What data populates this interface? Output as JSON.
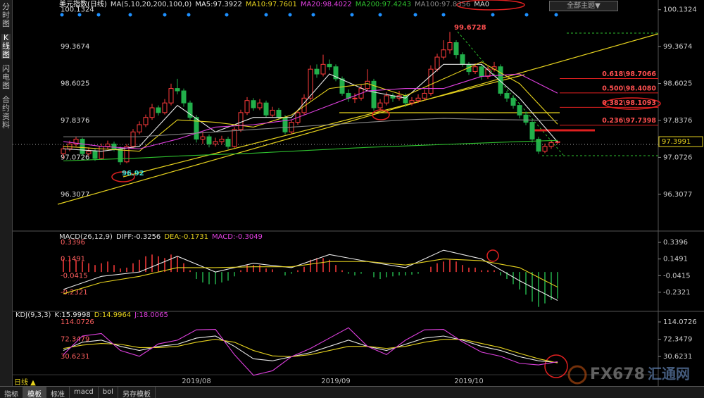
{
  "sidebar": [
    "分时图",
    "K线图",
    "闪电图",
    "合约资料"
  ],
  "theme_button": "全部主题▼",
  "period": "日线 ▲",
  "tabs": [
    "指标",
    "模板",
    "标准",
    "macd",
    "bol",
    "另存模板"
  ],
  "watermark": {
    "brand": "FX678",
    "site": "汇通网"
  },
  "chart_data": [
    {
      "type": "candlestick",
      "title": "美元指数(日线)",
      "indicator": "MA(5,10,20,200,100,0)",
      "extra_legend": "MA0",
      "categories": [
        null,
        null,
        null,
        null,
        null,
        null,
        null,
        null,
        null,
        null,
        null,
        null,
        null,
        null,
        null,
        null,
        null,
        null,
        null,
        null,
        null,
        "2019/08",
        null,
        null,
        null,
        null,
        null,
        null,
        null,
        null,
        null,
        null,
        null,
        null,
        null,
        null,
        null,
        null,
        null,
        null,
        null,
        null,
        null,
        "2019/09",
        null,
        null,
        null,
        null,
        null,
        null,
        null,
        null,
        null,
        null,
        null,
        null,
        null,
        null,
        null,
        null,
        null,
        null,
        null,
        null,
        "2019/10",
        null,
        null,
        null,
        null,
        null,
        null,
        null,
        null,
        null,
        null,
        null,
        null,
        null,
        null
      ],
      "up_color": "#ff3b3b",
      "down_color": "#22b04b",
      "candles": [
        [
          97.15,
          97.32,
          97.05,
          97.25
        ],
        [
          97.25,
          97.42,
          97.2,
          97.35
        ],
        [
          97.35,
          97.5,
          97.3,
          97.45
        ],
        [
          97.45,
          97.48,
          97.1,
          97.15
        ],
        [
          97.15,
          97.28,
          97.1,
          97.2
        ],
        [
          97.2,
          97.25,
          97.0,
          97.05
        ],
        [
          97.05,
          97.36,
          97.02,
          97.3
        ],
        [
          97.3,
          97.42,
          97.24,
          97.35
        ],
        [
          97.35,
          97.4,
          97.2,
          97.25
        ],
        [
          97.25,
          97.3,
          96.92,
          96.98
        ],
        [
          96.98,
          97.35,
          96.95,
          97.3
        ],
        [
          97.3,
          97.66,
          97.26,
          97.6
        ],
        [
          97.6,
          97.82,
          97.55,
          97.75
        ],
        [
          97.75,
          97.96,
          97.7,
          97.9
        ],
        [
          97.9,
          98.18,
          97.85,
          98.1
        ],
        [
          98.1,
          98.15,
          97.94,
          98.0
        ],
        [
          98.0,
          98.28,
          97.96,
          98.2
        ],
        [
          98.2,
          98.6,
          98.15,
          98.5
        ],
        [
          98.5,
          98.7,
          98.38,
          98.45
        ],
        [
          98.45,
          98.5,
          98.12,
          98.2
        ],
        [
          98.2,
          98.25,
          97.85,
          97.9
        ],
        [
          97.9,
          97.95,
          97.38,
          97.45
        ],
        [
          97.45,
          97.6,
          97.35,
          97.5
        ],
        [
          97.5,
          97.55,
          97.28,
          97.35
        ],
        [
          97.35,
          97.48,
          97.3,
          97.4
        ],
        [
          97.4,
          97.52,
          97.34,
          97.45
        ],
        [
          97.45,
          97.5,
          97.25,
          97.3
        ],
        [
          97.3,
          97.7,
          97.27,
          97.65
        ],
        [
          97.65,
          98.06,
          97.6,
          98.0
        ],
        [
          98.0,
          98.32,
          97.95,
          98.25
        ],
        [
          98.25,
          98.3,
          98.04,
          98.1
        ],
        [
          98.1,
          98.28,
          98.05,
          98.2
        ],
        [
          98.2,
          98.25,
          97.9,
          97.95
        ],
        [
          97.95,
          98.12,
          97.9,
          98.05
        ],
        [
          98.05,
          98.1,
          97.85,
          97.9
        ],
        [
          97.9,
          97.95,
          97.55,
          97.6
        ],
        [
          97.6,
          97.86,
          97.55,
          97.8
        ],
        [
          97.8,
          98.06,
          97.75,
          98.0
        ],
        [
          98.0,
          98.38,
          97.95,
          98.3
        ],
        [
          98.3,
          98.98,
          98.25,
          98.9
        ],
        [
          98.9,
          99.0,
          98.72,
          98.8
        ],
        [
          98.8,
          99.2,
          98.75,
          99.0
        ],
        [
          99.0,
          99.1,
          98.88,
          98.95
        ],
        [
          98.95,
          99.0,
          98.65,
          98.7
        ],
        [
          98.7,
          98.75,
          98.35,
          98.4
        ],
        [
          98.4,
          98.48,
          98.22,
          98.3
        ],
        [
          98.3,
          98.4,
          98.2,
          98.3
        ],
        [
          98.3,
          98.58,
          98.25,
          98.5
        ],
        [
          98.5,
          98.9,
          98.45,
          98.65
        ],
        [
          98.65,
          98.7,
          98.04,
          98.1
        ],
        [
          98.1,
          98.28,
          98.05,
          98.2
        ],
        [
          98.2,
          98.42,
          98.15,
          98.35
        ],
        [
          98.35,
          98.4,
          98.22,
          98.3
        ],
        [
          98.3,
          98.45,
          98.25,
          98.35
        ],
        [
          98.35,
          98.4,
          98.12,
          98.2
        ],
        [
          98.2,
          98.32,
          98.15,
          98.25
        ],
        [
          98.25,
          98.38,
          98.2,
          98.3
        ],
        [
          98.3,
          98.48,
          98.25,
          98.4
        ],
        [
          98.4,
          98.98,
          98.35,
          98.9
        ],
        [
          98.9,
          99.22,
          98.85,
          99.15
        ],
        [
          99.15,
          99.5,
          99.1,
          99.3
        ],
        [
          99.3,
          99.6728,
          99.22,
          99.45
        ],
        [
          99.45,
          99.5,
          99.12,
          99.2
        ],
        [
          99.2,
          99.25,
          98.95,
          99.0
        ],
        [
          99.0,
          99.05,
          98.78,
          98.85
        ],
        [
          98.85,
          99.02,
          98.8,
          98.95
        ],
        [
          98.95,
          99.0,
          98.68,
          98.75
        ],
        [
          98.75,
          98.96,
          98.7,
          98.9
        ],
        [
          98.9,
          99.05,
          98.85,
          98.95
        ],
        [
          98.95,
          99.0,
          98.35,
          98.4
        ],
        [
          98.4,
          98.45,
          98.22,
          98.3
        ],
        [
          98.3,
          98.36,
          98.08,
          98.15
        ],
        [
          98.15,
          98.2,
          97.88,
          97.95
        ],
        [
          97.95,
          98.02,
          97.74,
          97.8
        ],
        [
          97.8,
          97.85,
          97.38,
          97.45
        ],
        [
          97.45,
          97.5,
          97.1418,
          97.2
        ],
        [
          97.2,
          97.36,
          97.16,
          97.3
        ],
        [
          97.3,
          97.44,
          97.25,
          97.38
        ],
        [
          97.38,
          97.42,
          97.34,
          97.3991
        ]
      ],
      "series": [
        {
          "name": "MA5:97.3922",
          "color": "#e8e8e8",
          "x": [
            0,
            6,
            12,
            18,
            24,
            30,
            36,
            42,
            48,
            54,
            60,
            66,
            72,
            78
          ],
          "values": [
            97.25,
            97.2,
            97.3,
            98.15,
            97.6,
            97.9,
            97.9,
            98.8,
            98.45,
            98.3,
            99.0,
            99.0,
            98.3,
            97.3922
          ]
        },
        {
          "name": "MA10:97.7601",
          "color": "#e6d21e",
          "x": [
            0,
            6,
            12,
            18,
            24,
            30,
            36,
            42,
            48,
            54,
            60,
            66,
            72,
            78
          ],
          "values": [
            97.3,
            97.25,
            97.2,
            97.85,
            97.8,
            97.7,
            97.95,
            98.5,
            98.6,
            98.35,
            98.7,
            99.05,
            98.6,
            97.7601
          ]
        },
        {
          "name": "MA20:98.4022",
          "color": "#e040e0",
          "x": [
            0,
            6,
            12,
            18,
            24,
            30,
            36,
            42,
            48,
            54,
            60,
            66,
            72,
            78
          ],
          "values": [
            97.4,
            97.3,
            97.25,
            97.45,
            97.7,
            97.75,
            97.85,
            98.15,
            98.45,
            98.5,
            98.5,
            98.75,
            98.8,
            98.4022
          ]
        },
        {
          "name": "MA200:97.4243",
          "color": "#2ec02e",
          "x": [
            0,
            6,
            12,
            18,
            24,
            30,
            36,
            42,
            48,
            54,
            60,
            66,
            72,
            78
          ],
          "values": [
            97.0,
            97.03,
            97.06,
            97.1,
            97.13,
            97.16,
            97.2,
            97.24,
            97.28,
            97.31,
            97.34,
            97.37,
            97.4,
            97.4243
          ]
        },
        {
          "name": "MA100:97.8356",
          "color": "#888888",
          "x": [
            0,
            6,
            12,
            18,
            24,
            30,
            36,
            42,
            48,
            54,
            60,
            66,
            72,
            78
          ],
          "values": [
            97.5,
            97.5,
            97.5,
            97.55,
            97.6,
            97.65,
            97.7,
            97.75,
            97.8,
            97.85,
            97.88,
            97.86,
            97.85,
            97.8356
          ]
        }
      ],
      "fib_levels": [
        {
          "value": 98.7066,
          "label": "0.618\\98.7066"
        },
        {
          "value": 98.408,
          "label": "0.500\\98.4080"
        },
        {
          "value": 98.1093,
          "label": "0.382\\98.1093"
        },
        {
          "value": 97.7398,
          "label": "0.236\\97.7398"
        }
      ],
      "ylim": [
        95.59,
        100.26
      ],
      "yticks": [
        100.1324,
        99.3674,
        98.6025,
        97.8376,
        97.0726,
        96.3077
      ]
    },
    {
      "type": "macd",
      "title": "MACD(26,12,9)",
      "hist_up": "#ff3b3b",
      "hist_down": "#22b04b",
      "histogram": [
        0.15,
        0.16,
        0.14,
        0.12,
        0.1,
        0.08,
        0.1,
        0.12,
        0.08,
        0.04,
        0.05,
        0.1,
        0.14,
        0.18,
        0.2,
        0.18,
        0.16,
        0.2,
        0.18,
        0.1,
        0.02,
        -0.08,
        -0.12,
        -0.14,
        -0.14,
        -0.12,
        -0.1,
        -0.05,
        0.02,
        0.08,
        0.08,
        0.08,
        0.04,
        0.03,
        0.0,
        -0.04,
        -0.02,
        0.02,
        0.06,
        0.14,
        0.16,
        0.16,
        0.14,
        0.08,
        0.02,
        -0.02,
        -0.04,
        -0.02,
        0.0,
        -0.06,
        -0.08,
        -0.06,
        -0.05,
        -0.04,
        -0.04,
        -0.03,
        -0.02,
        0.0,
        0.06,
        0.1,
        0.12,
        0.14,
        0.12,
        0.08,
        0.05,
        0.05,
        0.02,
        0.02,
        0.02,
        -0.04,
        -0.08,
        -0.14,
        -0.2,
        -0.26,
        -0.34,
        -0.4,
        -0.36,
        -0.32,
        -0.3049
      ],
      "histogram_label": "MACD:-0.3049",
      "series": [
        {
          "name": "DIFF:-0.3256",
          "color": "#e8e8e8",
          "x": [
            0,
            6,
            12,
            18,
            24,
            30,
            36,
            42,
            48,
            54,
            60,
            66,
            72,
            78
          ],
          "values": [
            -0.2,
            -0.05,
            0.0,
            0.18,
            0.0,
            0.1,
            0.05,
            0.2,
            0.12,
            0.05,
            0.25,
            0.15,
            -0.1,
            -0.3256
          ]
        },
        {
          "name": "DEA:-0.1731",
          "color": "#e6d21e",
          "x": [
            0,
            6,
            12,
            18,
            24,
            30,
            36,
            42,
            48,
            54,
            60,
            66,
            72,
            78
          ],
          "values": [
            -0.25,
            -0.12,
            -0.05,
            0.05,
            0.05,
            0.06,
            0.06,
            0.12,
            0.12,
            0.08,
            0.15,
            0.13,
            0.05,
            -0.1731
          ]
        }
      ],
      "ylim": [
        -0.435,
        0.437
      ],
      "yticks": [
        0.3396,
        0.1491,
        -0.0415,
        -0.2321
      ]
    },
    {
      "type": "line",
      "title": "KDJ(9,3,3)",
      "series": [
        {
          "name": "K:15.9998",
          "color": "#e8e8e8",
          "x": [
            0,
            3,
            6,
            9,
            12,
            15,
            18,
            21,
            24,
            27,
            30,
            33,
            36,
            39,
            42,
            45,
            48,
            51,
            54,
            57,
            60,
            63,
            66,
            69,
            72,
            75,
            78
          ],
          "values": [
            45,
            65,
            70,
            55,
            45,
            55,
            60,
            75,
            80,
            55,
            25,
            20,
            30,
            40,
            55,
            70,
            55,
            45,
            60,
            75,
            80,
            70,
            55,
            45,
            30,
            20,
            15.9998
          ]
        },
        {
          "name": "D:14.9964",
          "color": "#e6d21e",
          "x": [
            0,
            3,
            6,
            9,
            12,
            15,
            18,
            21,
            24,
            27,
            30,
            33,
            36,
            39,
            42,
            45,
            48,
            51,
            54,
            57,
            60,
            63,
            66,
            69,
            72,
            75,
            78
          ],
          "values": [
            50,
            58,
            62,
            60,
            52,
            52,
            55,
            65,
            72,
            65,
            45,
            32,
            30,
            35,
            45,
            55,
            55,
            50,
            55,
            65,
            72,
            72,
            62,
            52,
            38,
            25,
            14.9964
          ]
        },
        {
          "name": "J:18.0065",
          "color": "#e040e0",
          "x": [
            0,
            3,
            6,
            9,
            12,
            15,
            18,
            21,
            24,
            27,
            30,
            33,
            36,
            39,
            42,
            45,
            48,
            51,
            54,
            57,
            60,
            63,
            66,
            69,
            72,
            75,
            78
          ],
          "values": [
            35,
            80,
            86,
            45,
            31,
            61,
            70,
            95,
            96,
            35,
            -15,
            -4,
            30,
            50,
            75,
            100,
            55,
            35,
            70,
            95,
            96,
            66,
            41,
            31,
            14,
            10,
            18.0065
          ]
        }
      ],
      "ylim": [
        -27.3,
        134.5
      ],
      "yticks": [
        114.0726,
        72.3479,
        30.6231
      ]
    }
  ]
}
